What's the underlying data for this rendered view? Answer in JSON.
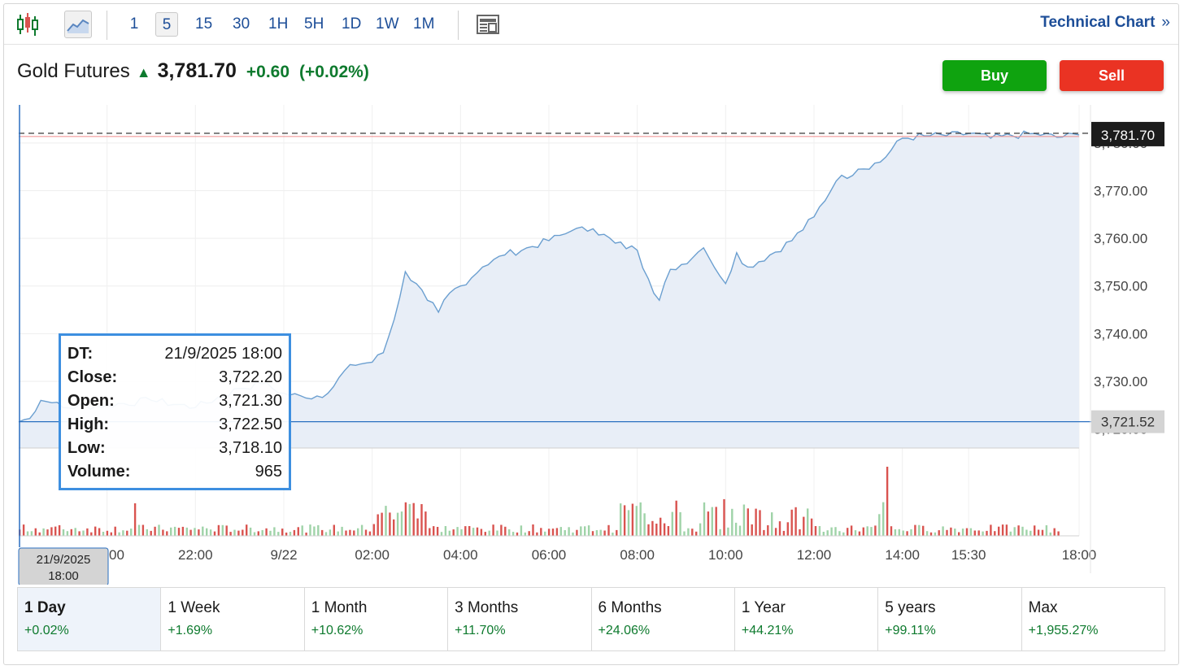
{
  "toolbar": {
    "icons": {
      "candle": "candlestick-icon",
      "area": "area-chart-icon",
      "news": "news-icon"
    },
    "timeframes": [
      "1",
      "5",
      "15",
      "30",
      "1H",
      "5H",
      "1D",
      "1W",
      "1M"
    ],
    "active_timeframe": "5",
    "technical_link": "Technical Chart",
    "technical_arrow": "»"
  },
  "quote": {
    "name": "Gold Futures",
    "arrow": "▲",
    "price": "3,781.70",
    "change": "+0.60",
    "change_pct": "(+0.02%)"
  },
  "actions": {
    "buy": "Buy",
    "sell": "Sell"
  },
  "tooltip": [
    {
      "label": "DT:",
      "value": "21/9/2025 18:00"
    },
    {
      "label": "Close:",
      "value": "3,722.20"
    },
    {
      "label": "Open:",
      "value": "3,721.30"
    },
    {
      "label": "High:",
      "value": "3,722.50"
    },
    {
      "label": "Low:",
      "value": "3,718.10"
    },
    {
      "label": "Volume:",
      "value": "965"
    }
  ],
  "crosshair_date": {
    "line1": "21/9/2025",
    "line2": "18:00"
  },
  "periods": [
    {
      "label": "1 Day",
      "change": "+0.02%"
    },
    {
      "label": "1 Week",
      "change": "+1.69%"
    },
    {
      "label": "1 Month",
      "change": "+10.62%"
    },
    {
      "label": "3 Months",
      "change": "+11.70%"
    },
    {
      "label": "6 Months",
      "change": "+24.06%"
    },
    {
      "label": "1 Year",
      "change": "+44.21%"
    },
    {
      "label": "5 years",
      "change": "+99.11%"
    },
    {
      "label": "Max",
      "change": "+1,955.27%"
    }
  ],
  "active_period": "1 Day",
  "colors": {
    "line": "#6b9fd0",
    "area": "#e8eef7",
    "up_volume": "#9fd3a8",
    "down_volume": "#d9534f",
    "accent": "#1d4e98",
    "positive": "#0e7a2e"
  },
  "chart_data": {
    "type": "area",
    "x_ticks": [
      "20:00",
      "22:00",
      "9/22",
      "02:00",
      "04:00",
      "06:00",
      "08:00",
      "10:00",
      "12:00",
      "14:00",
      "15:30",
      "18:00"
    ],
    "x_tick_hours": [
      20,
      22,
      24,
      26,
      28,
      30,
      32,
      34,
      36,
      38,
      39.5,
      42
    ],
    "y_ticks": [
      3720,
      3730,
      3740,
      3750,
      3760,
      3770,
      3780
    ],
    "y_tick_labels": [
      "3,720.00",
      "3,730.00",
      "3,740.00",
      "3,750.00",
      "3,760.00",
      "3,770.00",
      "3,780.00"
    ],
    "ylim": [
      3716,
      3788
    ],
    "xlim": [
      18,
      42
    ],
    "last_price": 3781.7,
    "last_price_label": "3,781.70",
    "crosshair_price": 3721.52,
    "crosshair_price_label": "3,721.52",
    "x": [
      18,
      18.25,
      18.5,
      18.75,
      19,
      20,
      21,
      22,
      23,
      23.5,
      24,
      24.5,
      25,
      25.5,
      26,
      26.25,
      26.5,
      26.75,
      27,
      27.25,
      27.5,
      27.75,
      28,
      28.5,
      29,
      29.5,
      30,
      30.5,
      31,
      31.5,
      32,
      32.25,
      32.5,
      32.75,
      33,
      33.5,
      34,
      34.25,
      34.5,
      35,
      35.5,
      36,
      36.5,
      37,
      37.5,
      38,
      38.5,
      39,
      39.5,
      40,
      40.5,
      41,
      41.5,
      42
    ],
    "close": [
      3721.5,
      3722.2,
      3726.0,
      3725.5,
      3724.5,
      3725.0,
      3726.0,
      3724.5,
      3728.5,
      3729.5,
      3727.5,
      3726.5,
      3727.5,
      3733.5,
      3734.0,
      3736.0,
      3743.0,
      3753.0,
      3750.5,
      3747.0,
      3744.5,
      3748.5,
      3750.0,
      3754.0,
      3756.5,
      3758.0,
      3759.5,
      3761.5,
      3762.0,
      3759.0,
      3757.5,
      3751.5,
      3747.0,
      3753.5,
      3754.5,
      3758.0,
      3750.5,
      3757.0,
      3754.0,
      3756.5,
      3759.5,
      3764.5,
      3772.0,
      3774.5,
      3776.0,
      3781.0,
      3781.5,
      3781.5,
      3782.0,
      3781.0,
      3781.5,
      3782.0,
      3781.2,
      3781.7
    ],
    "volume_note": "Volume bars shown below price area; green = up interval, red = down interval"
  }
}
